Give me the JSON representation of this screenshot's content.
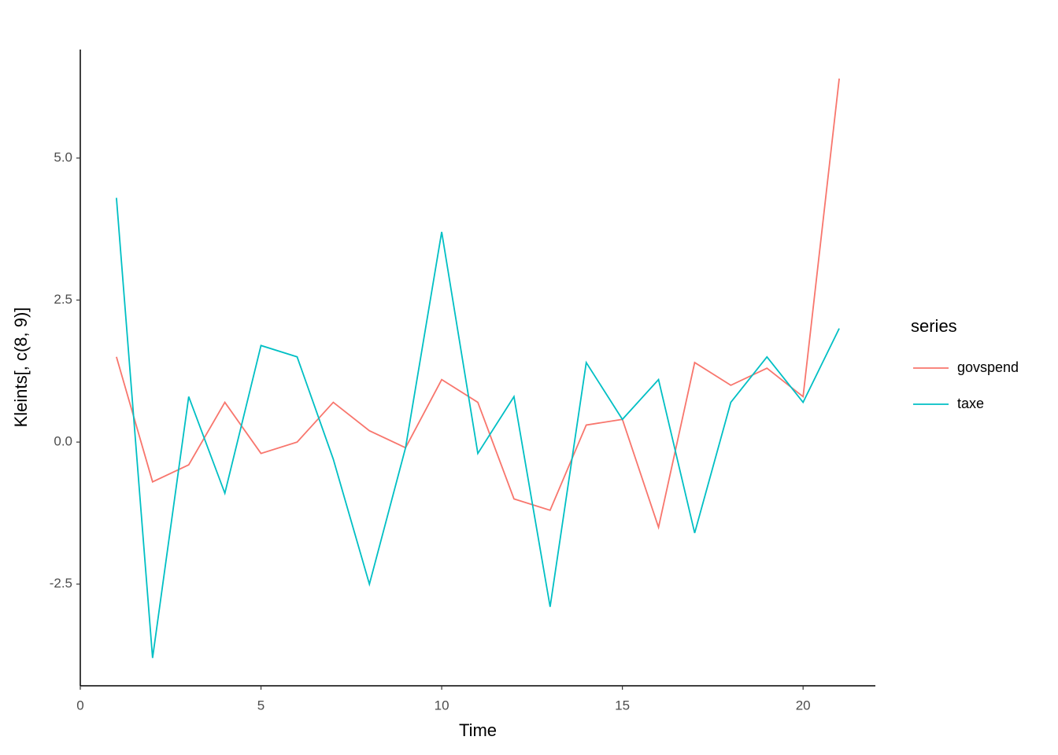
{
  "chart_data": {
    "type": "line",
    "x_label": "Time",
    "y_label": "Kleints[, c(8, 9)]",
    "x": [
      1,
      2,
      3,
      4,
      5,
      6,
      7,
      8,
      9,
      10,
      11,
      12,
      13,
      14,
      15,
      16,
      17,
      18,
      19,
      20,
      21
    ],
    "series": [
      {
        "name": "govspend",
        "color": "#F8766D",
        "values": [
          1.5,
          -0.7,
          -0.4,
          0.7,
          -0.2,
          0,
          0.7,
          0.2,
          -0.1,
          1.1,
          0.7,
          -1.0,
          -1.2,
          0.3,
          0.4,
          -1.5,
          1.4,
          1.0,
          1.3,
          0.8,
          6.4
        ]
      },
      {
        "name": "taxe",
        "color": "#00BFC4",
        "values": [
          4.3,
          -3.8,
          0.8,
          -0.9,
          1.7,
          1.5,
          -0.3,
          -2.5,
          -0.1,
          3.7,
          -0.2,
          0.8,
          -2.9,
          1.4,
          0.4,
          1.1,
          -1.6,
          0.7,
          1.5,
          0.7,
          2.0
        ]
      }
    ],
    "xlim": [
      0,
      22
    ],
    "xticks": [
      0,
      5,
      10,
      15,
      20
    ],
    "ylim": [
      -4.29,
      6.91
    ],
    "yticks": [
      -2.5,
      {
        "value": 0,
        "label": "0.0"
      },
      2.5,
      {
        "value": 5,
        "label": "5.0"
      }
    ],
    "grid": false,
    "legend_title": "series",
    "legend_position": "right"
  }
}
